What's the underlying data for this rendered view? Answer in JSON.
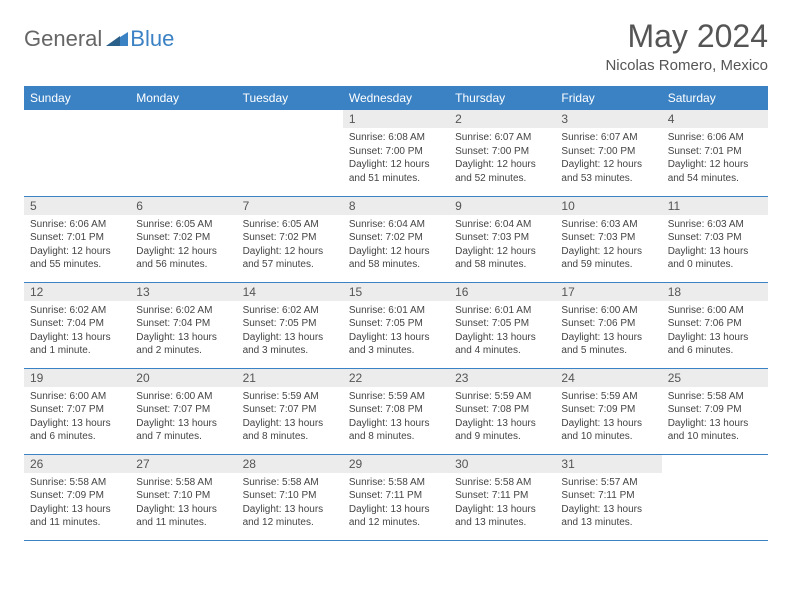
{
  "logo": {
    "general": "General",
    "blue": "Blue"
  },
  "title": "May 2024",
  "location": "Nicolas Romero, Mexico",
  "colors": {
    "header_bg": "#3b82c4",
    "header_text": "#ffffff",
    "daynum_bg": "#ececec",
    "row_border": "#3b82c4",
    "body_text": "#444444",
    "title_text": "#555555"
  },
  "weekdays": [
    "Sunday",
    "Monday",
    "Tuesday",
    "Wednesday",
    "Thursday",
    "Friday",
    "Saturday"
  ],
  "weeks": [
    [
      {
        "day": "",
        "sunrise": "",
        "sunset": "",
        "daylight": ""
      },
      {
        "day": "",
        "sunrise": "",
        "sunset": "",
        "daylight": ""
      },
      {
        "day": "",
        "sunrise": "",
        "sunset": "",
        "daylight": ""
      },
      {
        "day": "1",
        "sunrise": "Sunrise: 6:08 AM",
        "sunset": "Sunset: 7:00 PM",
        "daylight": "Daylight: 12 hours and 51 minutes."
      },
      {
        "day": "2",
        "sunrise": "Sunrise: 6:07 AM",
        "sunset": "Sunset: 7:00 PM",
        "daylight": "Daylight: 12 hours and 52 minutes."
      },
      {
        "day": "3",
        "sunrise": "Sunrise: 6:07 AM",
        "sunset": "Sunset: 7:00 PM",
        "daylight": "Daylight: 12 hours and 53 minutes."
      },
      {
        "day": "4",
        "sunrise": "Sunrise: 6:06 AM",
        "sunset": "Sunset: 7:01 PM",
        "daylight": "Daylight: 12 hours and 54 minutes."
      }
    ],
    [
      {
        "day": "5",
        "sunrise": "Sunrise: 6:06 AM",
        "sunset": "Sunset: 7:01 PM",
        "daylight": "Daylight: 12 hours and 55 minutes."
      },
      {
        "day": "6",
        "sunrise": "Sunrise: 6:05 AM",
        "sunset": "Sunset: 7:02 PM",
        "daylight": "Daylight: 12 hours and 56 minutes."
      },
      {
        "day": "7",
        "sunrise": "Sunrise: 6:05 AM",
        "sunset": "Sunset: 7:02 PM",
        "daylight": "Daylight: 12 hours and 57 minutes."
      },
      {
        "day": "8",
        "sunrise": "Sunrise: 6:04 AM",
        "sunset": "Sunset: 7:02 PM",
        "daylight": "Daylight: 12 hours and 58 minutes."
      },
      {
        "day": "9",
        "sunrise": "Sunrise: 6:04 AM",
        "sunset": "Sunset: 7:03 PM",
        "daylight": "Daylight: 12 hours and 58 minutes."
      },
      {
        "day": "10",
        "sunrise": "Sunrise: 6:03 AM",
        "sunset": "Sunset: 7:03 PM",
        "daylight": "Daylight: 12 hours and 59 minutes."
      },
      {
        "day": "11",
        "sunrise": "Sunrise: 6:03 AM",
        "sunset": "Sunset: 7:03 PM",
        "daylight": "Daylight: 13 hours and 0 minutes."
      }
    ],
    [
      {
        "day": "12",
        "sunrise": "Sunrise: 6:02 AM",
        "sunset": "Sunset: 7:04 PM",
        "daylight": "Daylight: 13 hours and 1 minute."
      },
      {
        "day": "13",
        "sunrise": "Sunrise: 6:02 AM",
        "sunset": "Sunset: 7:04 PM",
        "daylight": "Daylight: 13 hours and 2 minutes."
      },
      {
        "day": "14",
        "sunrise": "Sunrise: 6:02 AM",
        "sunset": "Sunset: 7:05 PM",
        "daylight": "Daylight: 13 hours and 3 minutes."
      },
      {
        "day": "15",
        "sunrise": "Sunrise: 6:01 AM",
        "sunset": "Sunset: 7:05 PM",
        "daylight": "Daylight: 13 hours and 3 minutes."
      },
      {
        "day": "16",
        "sunrise": "Sunrise: 6:01 AM",
        "sunset": "Sunset: 7:05 PM",
        "daylight": "Daylight: 13 hours and 4 minutes."
      },
      {
        "day": "17",
        "sunrise": "Sunrise: 6:00 AM",
        "sunset": "Sunset: 7:06 PM",
        "daylight": "Daylight: 13 hours and 5 minutes."
      },
      {
        "day": "18",
        "sunrise": "Sunrise: 6:00 AM",
        "sunset": "Sunset: 7:06 PM",
        "daylight": "Daylight: 13 hours and 6 minutes."
      }
    ],
    [
      {
        "day": "19",
        "sunrise": "Sunrise: 6:00 AM",
        "sunset": "Sunset: 7:07 PM",
        "daylight": "Daylight: 13 hours and 6 minutes."
      },
      {
        "day": "20",
        "sunrise": "Sunrise: 6:00 AM",
        "sunset": "Sunset: 7:07 PM",
        "daylight": "Daylight: 13 hours and 7 minutes."
      },
      {
        "day": "21",
        "sunrise": "Sunrise: 5:59 AM",
        "sunset": "Sunset: 7:07 PM",
        "daylight": "Daylight: 13 hours and 8 minutes."
      },
      {
        "day": "22",
        "sunrise": "Sunrise: 5:59 AM",
        "sunset": "Sunset: 7:08 PM",
        "daylight": "Daylight: 13 hours and 8 minutes."
      },
      {
        "day": "23",
        "sunrise": "Sunrise: 5:59 AM",
        "sunset": "Sunset: 7:08 PM",
        "daylight": "Daylight: 13 hours and 9 minutes."
      },
      {
        "day": "24",
        "sunrise": "Sunrise: 5:59 AM",
        "sunset": "Sunset: 7:09 PM",
        "daylight": "Daylight: 13 hours and 10 minutes."
      },
      {
        "day": "25",
        "sunrise": "Sunrise: 5:58 AM",
        "sunset": "Sunset: 7:09 PM",
        "daylight": "Daylight: 13 hours and 10 minutes."
      }
    ],
    [
      {
        "day": "26",
        "sunrise": "Sunrise: 5:58 AM",
        "sunset": "Sunset: 7:09 PM",
        "daylight": "Daylight: 13 hours and 11 minutes."
      },
      {
        "day": "27",
        "sunrise": "Sunrise: 5:58 AM",
        "sunset": "Sunset: 7:10 PM",
        "daylight": "Daylight: 13 hours and 11 minutes."
      },
      {
        "day": "28",
        "sunrise": "Sunrise: 5:58 AM",
        "sunset": "Sunset: 7:10 PM",
        "daylight": "Daylight: 13 hours and 12 minutes."
      },
      {
        "day": "29",
        "sunrise": "Sunrise: 5:58 AM",
        "sunset": "Sunset: 7:11 PM",
        "daylight": "Daylight: 13 hours and 12 minutes."
      },
      {
        "day": "30",
        "sunrise": "Sunrise: 5:58 AM",
        "sunset": "Sunset: 7:11 PM",
        "daylight": "Daylight: 13 hours and 13 minutes."
      },
      {
        "day": "31",
        "sunrise": "Sunrise: 5:57 AM",
        "sunset": "Sunset: 7:11 PM",
        "daylight": "Daylight: 13 hours and 13 minutes."
      },
      {
        "day": "",
        "sunrise": "",
        "sunset": "",
        "daylight": ""
      }
    ]
  ]
}
